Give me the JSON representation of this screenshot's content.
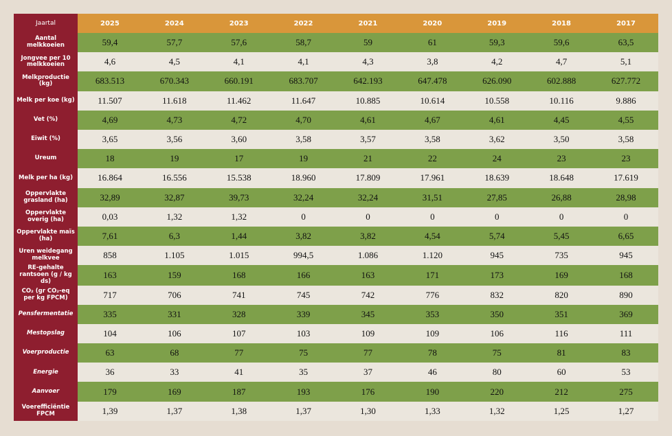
{
  "table": {
    "header": [
      "Jaartal",
      "2025",
      "2024",
      "2023",
      "2022",
      "2021",
      "2020",
      "2019",
      "2018",
      "2017"
    ],
    "rows": [
      [
        "Aantal melkkoeien",
        "59,4",
        "57,7",
        "57,6",
        "58,7",
        "59",
        "61",
        "59,3",
        "59,6",
        "63,5"
      ],
      [
        "Jongvee per 10 melkkoeien",
        "4,6",
        "4,5",
        "4,1",
        "4,1",
        "4,3",
        "3,8",
        "4,2",
        "4,7",
        "5,1"
      ],
      [
        "Melkproductie (kg)",
        "683.513",
        "670.343",
        "660.191",
        "683.707",
        "642.193",
        "647.478",
        "626.090",
        "602.888",
        "627.772"
      ],
      [
        "Melk per koe (kg)",
        "11.507",
        "11.618",
        "11.462",
        "11.647",
        "10.885",
        "10.614",
        "10.558",
        "10.116",
        "9.886"
      ],
      [
        "Vet (%)",
        "4,69",
        "4,73",
        "4,72",
        "4,70",
        "4,61",
        "4,67",
        "4,61",
        "4,45",
        "4,55"
      ],
      [
        "Eiwit (%)",
        "3,65",
        "3,56",
        "3,60",
        "3,58",
        "3,57",
        "3,58",
        "3,62",
        "3,50",
        "3,58"
      ],
      [
        "Ureum",
        "18",
        "19",
        "17",
        "19",
        "21",
        "22",
        "24",
        "23",
        "23"
      ],
      [
        "Melk per ha (kg)",
        "16.864",
        "16.556",
        "15.538",
        "18.960",
        "17.809",
        "17.961",
        "18.639",
        "18.648",
        "17.619"
      ],
      [
        "Oppervlakte grasland (ha)",
        "32,89",
        "32,87",
        "39,73",
        "32,24",
        "32,24",
        "31,51",
        "27,85",
        "26,88",
        "28,98"
      ],
      [
        "Oppervlakte overig (ha)",
        "0,03",
        "1,32",
        "1,32",
        "0",
        "0",
        "0",
        "0",
        "0",
        "0"
      ],
      [
        "Oppervlakte maïs (ha)",
        "7,61",
        "6,3",
        "1,44",
        "3,82",
        "3,82",
        "4,54",
        "5,74",
        "5,45",
        "6,65"
      ],
      [
        "Uren weidegang melkvee",
        "858",
        "1.105",
        "1.015",
        "994,5",
        "1.086",
        "1.120",
        "945",
        "735",
        "945"
      ],
      [
        "RE-gehalte rantsoen (g / kg ds)",
        "163",
        "159",
        "168",
        "166",
        "163",
        "171",
        "173",
        "169",
        "168"
      ],
      [
        "CO₂ (gr CO₂-eq per kg FPCM)",
        "717",
        "706",
        "741",
        "745",
        "742",
        "776",
        "832",
        "820",
        "890"
      ],
      [
        "Pensfermentatie",
        "335",
        "331",
        "328",
        "339",
        "345",
        "353",
        "350",
        "351",
        "369"
      ],
      [
        "Mestopslag",
        "104",
        "106",
        "107",
        "103",
        "109",
        "109",
        "106",
        "116",
        "111"
      ],
      [
        "Voerproductie",
        "63",
        "68",
        "77",
        "75",
        "77",
        "78",
        "75",
        "81",
        "83"
      ],
      [
        "Energie",
        "36",
        "33",
        "41",
        "35",
        "37",
        "46",
        "80",
        "60",
        "53"
      ],
      [
        "Aanvoer",
        "179",
        "169",
        "187",
        "193",
        "176",
        "190",
        "220",
        "212",
        "275"
      ],
      [
        "Voerefficiëntie FPCM",
        "1,39",
        "1,37",
        "1,38",
        "1,37",
        "1,30",
        "1,33",
        "1,32",
        "1,25",
        "1,27"
      ]
    ]
  }
}
